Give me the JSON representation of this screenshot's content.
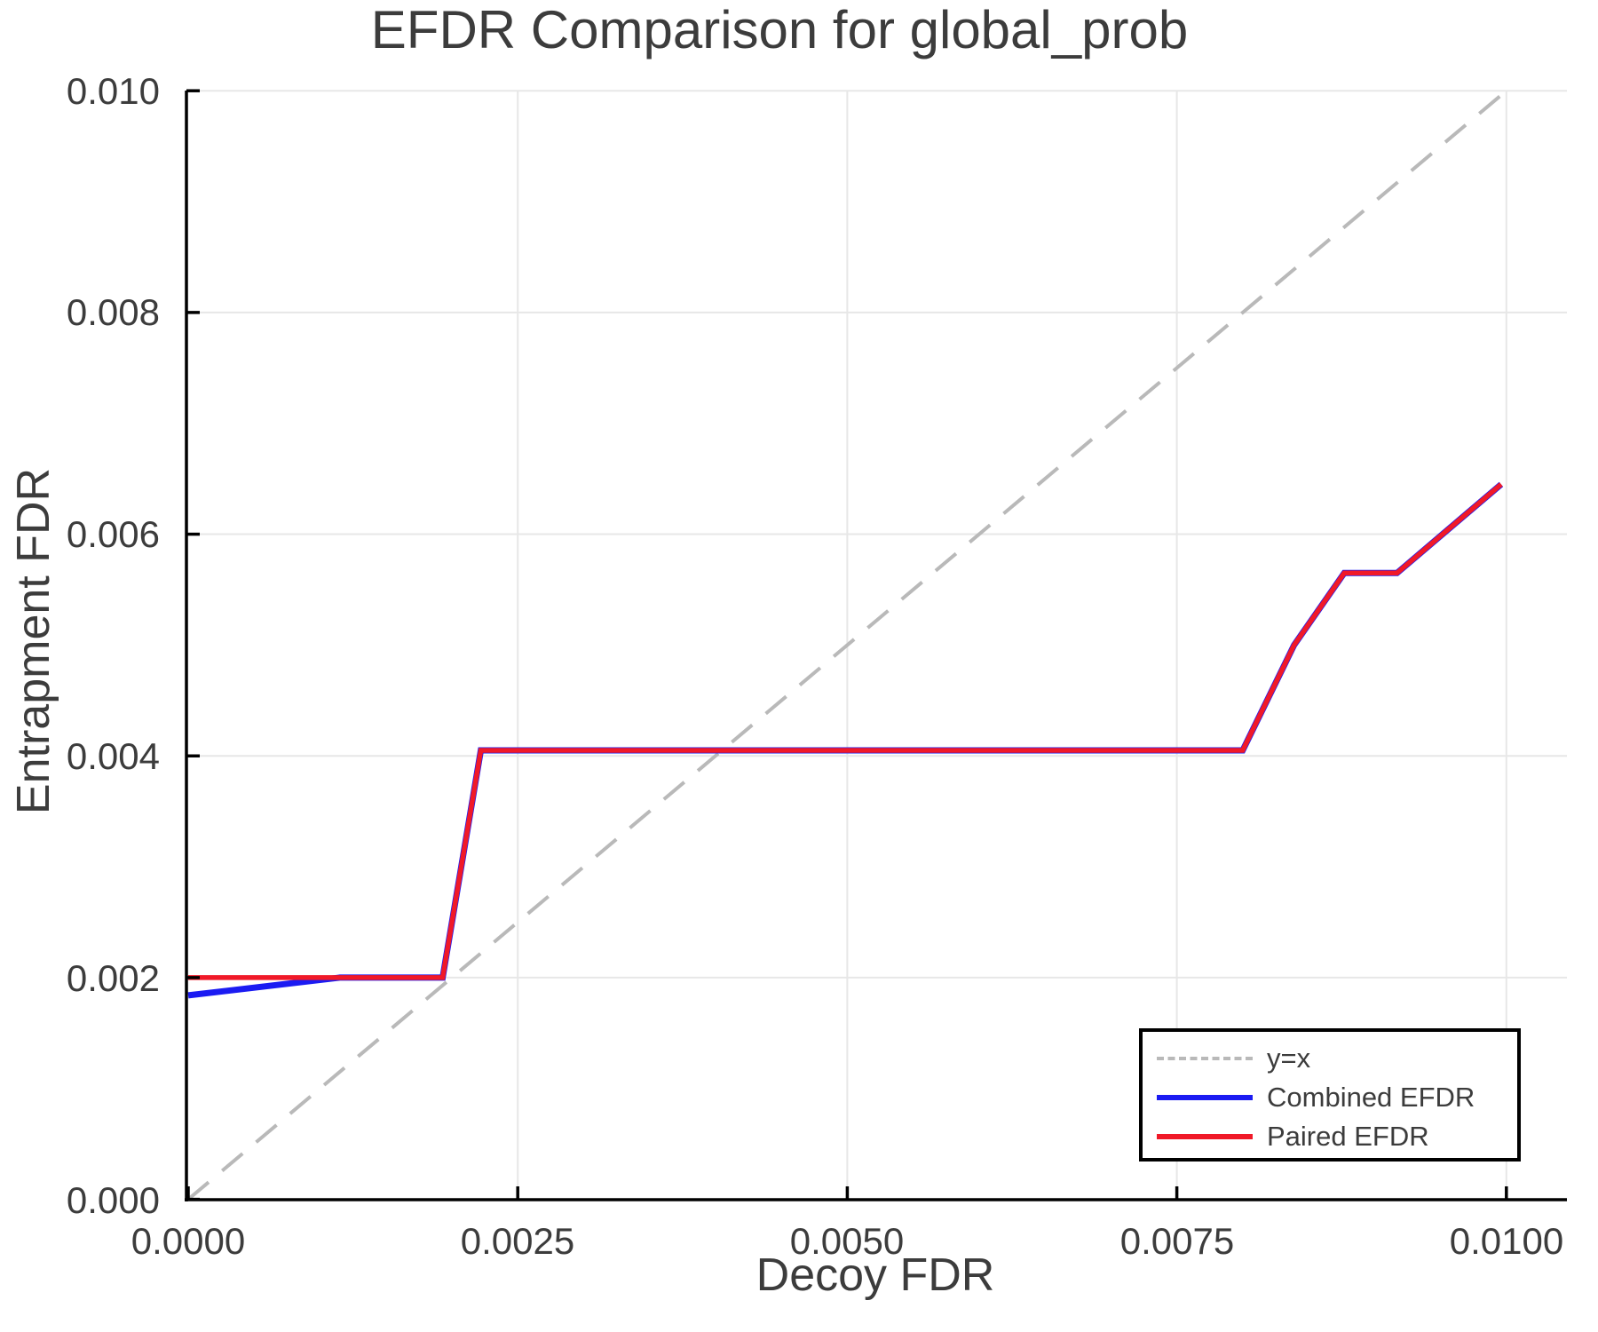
{
  "chart_data": {
    "type": "line",
    "title": "EFDR Comparison for global_prob",
    "xlabel": "Decoy FDR",
    "ylabel": "Entrapment FDR",
    "xlim": [
      0.0,
      0.01047
    ],
    "ylim": [
      0.0,
      0.01
    ],
    "grid": true,
    "legend_position": "lower right",
    "x_tick_values": [
      0.0,
      0.0025,
      0.005,
      0.0075,
      0.01
    ],
    "x_tick_labels": [
      "0.0000",
      "0.0025",
      "0.0050",
      "0.0075",
      "0.0100"
    ],
    "y_tick_values": [
      0.0,
      0.002,
      0.004,
      0.006,
      0.008,
      0.01
    ],
    "y_tick_labels": [
      "0.000",
      "0.002",
      "0.004",
      "0.006",
      "0.008",
      "0.010"
    ],
    "series": [
      {
        "name": "y=x",
        "style": "dashed",
        "color": "#b9b9b9",
        "points": [
          [
            0.0,
            0.0
          ],
          [
            0.00996,
            0.00996
          ]
        ]
      },
      {
        "name": "Combined EFDR",
        "style": "solid",
        "color": "#1b1bf2",
        "points": [
          [
            0.0,
            0.00184
          ],
          [
            0.00115,
            0.002
          ],
          [
            0.00193,
            0.002
          ],
          [
            0.00222,
            0.00405
          ],
          [
            0.008,
            0.00405
          ],
          [
            0.00839,
            0.005
          ],
          [
            0.00877,
            0.00565
          ],
          [
            0.00917,
            0.00565
          ],
          [
            0.00996,
            0.00645
          ]
        ]
      },
      {
        "name": "Paired EFDR",
        "style": "solid",
        "color": "#f01928",
        "points": [
          [
            0.0,
            0.002
          ],
          [
            0.00193,
            0.002
          ],
          [
            0.00222,
            0.00405
          ],
          [
            0.008,
            0.00405
          ],
          [
            0.00839,
            0.005
          ],
          [
            0.00877,
            0.00565
          ],
          [
            0.00917,
            0.00565
          ],
          [
            0.00996,
            0.00645
          ]
        ]
      }
    ]
  }
}
